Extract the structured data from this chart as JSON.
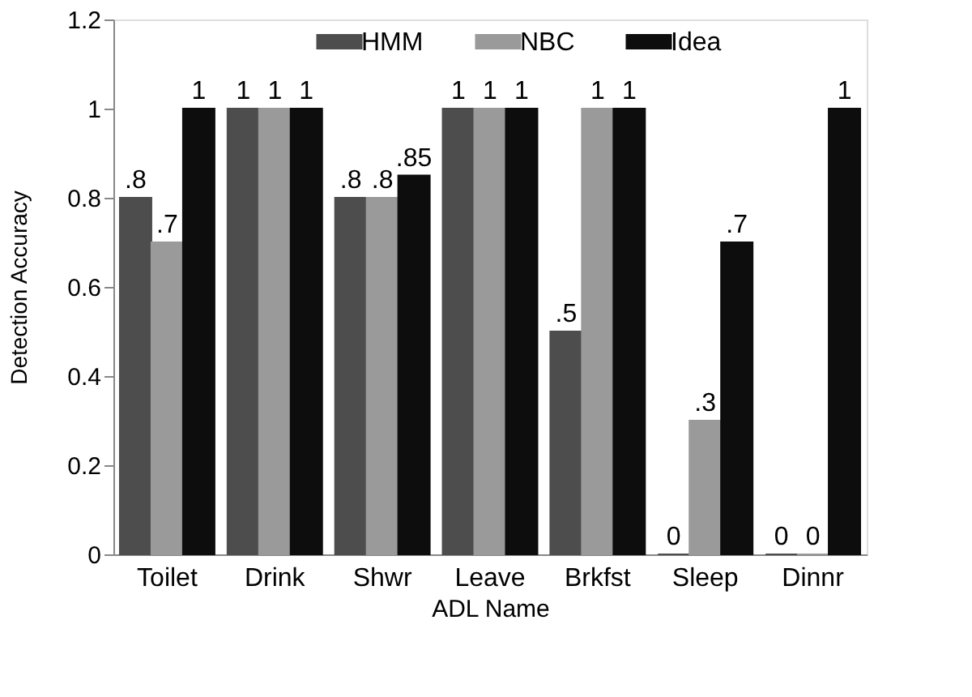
{
  "chart_data": {
    "type": "bar",
    "xlabel": "ADL Name",
    "ylabel": "Detection Accuracy",
    "categories": [
      "Toilet",
      "Drink",
      "Shwr",
      "Leave",
      "Brkfst",
      "Sleep",
      "Dinnr"
    ],
    "series": [
      {
        "name": "HMM",
        "color": "#4d4d4d",
        "values": [
          0.8,
          1,
          0.8,
          1,
          0.5,
          0,
          0
        ],
        "value_labels": [
          ".8",
          "1",
          ".8",
          "1",
          ".5",
          "0",
          "0"
        ]
      },
      {
        "name": "NBC",
        "color": "#9a9a9a",
        "values": [
          0.7,
          1,
          0.8,
          1,
          1,
          0.3,
          0
        ],
        "value_labels": [
          ".7",
          "1",
          ".8",
          "1",
          "1",
          ".3",
          "0"
        ]
      },
      {
        "name": "Idea",
        "color": "#0d0d0d",
        "values": [
          1,
          1,
          0.85,
          1,
          1,
          0.7,
          1
        ],
        "value_labels": [
          "1",
          "1",
          ".85",
          "1",
          "1",
          ".7",
          "1"
        ]
      }
    ],
    "ylim": [
      0,
      1.2
    ],
    "yticks": [
      0,
      0.2,
      0.4,
      0.6,
      0.8,
      1,
      1.2
    ],
    "grid": false,
    "legend": "top"
  }
}
